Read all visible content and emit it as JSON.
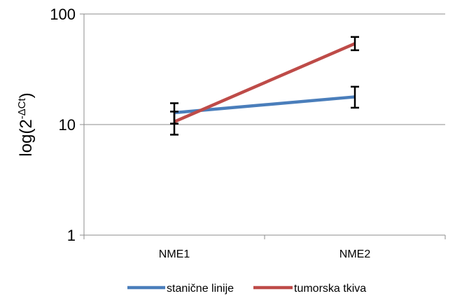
{
  "chart_data": {
    "type": "line",
    "title": "",
    "xlabel": "",
    "ylabel": "log(2",
    "ylabel_superscript": "-ΔCt",
    "ylabel_close": ")",
    "yscale": "log",
    "ylim": [
      1,
      100
    ],
    "yticks": [
      1,
      10,
      100
    ],
    "ytick_labels": [
      "1",
      "10",
      "100"
    ],
    "categories": [
      "NME1",
      "NME2"
    ],
    "grid": true,
    "legend_position": "bottom",
    "series": [
      {
        "name": "stanične linije",
        "color": "#4a7ebb",
        "values": [
          12.8,
          17.8
        ],
        "error_low": [
          10.2,
          14.2
        ],
        "error_high": [
          15.6,
          22.0
        ]
      },
      {
        "name": "tumorska tkiva",
        "color": "#be4b48",
        "values": [
          10.6,
          54
        ],
        "error_low": [
          8.1,
          47
        ],
        "error_high": [
          13.1,
          62
        ]
      }
    ]
  }
}
